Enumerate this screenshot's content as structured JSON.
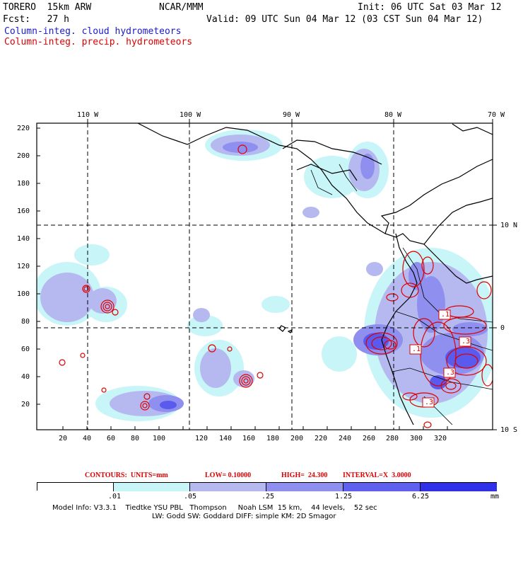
{
  "header": {
    "model": "TORERO  15km ARW",
    "center": "NCAR/MMM",
    "init": "Init: 06 UTC Sat 03 Mar 12",
    "fcst": "Fcst:   27 h",
    "valid": "Valid: 09 UTC Sun 04 Mar 12 (03 CST Sun 04 Mar 12)",
    "field_cloud": "Column-integ. cloud hydrometeors",
    "field_precip": "Column-integ. precip. hydrometeors"
  },
  "colors": {
    "cloud_label": "#1a1acc",
    "precip_label": "#dd0000",
    "shade_1": "#c8f5f8",
    "shade_2": "#b6b9f0",
    "shade_3": "#8f8ff0",
    "shade_4": "#6060ee",
    "shade_5": "#3030e8"
  },
  "map": {
    "lon_labels": [
      "110 W",
      "100 W",
      "90 W",
      "80 W",
      "70 W"
    ],
    "lat_labels": [
      "10 N",
      "0",
      "10 S"
    ],
    "x_ticks": [
      "20",
      "40",
      "60",
      "80",
      "100",
      "120",
      "140",
      "160",
      "180",
      "200",
      "220",
      "240",
      "260",
      "280",
      "300",
      "320"
    ],
    "y_ticks": [
      "220",
      "200",
      "180",
      "160",
      "140",
      "120",
      "100",
      "80",
      "60",
      "40",
      "20"
    ],
    "box_labels": [
      ".1",
      ".1",
      ".3",
      ".3",
      ".3"
    ]
  },
  "contours": {
    "units_label": "CONTOURS:  UNITS=mm",
    "low": "LOW= 0.10000",
    "high": "HIGH=  24.300",
    "interval": "INTERVAL=X  3.0000"
  },
  "legend": {
    "labels": [
      ".01",
      ".05",
      ".25",
      "1.25",
      "6.25"
    ],
    "unit": "mm"
  },
  "footer": {
    "line1": "Model Info: V3.3.1    Tiedtke YSU PBL   Thompson     Noah LSM  15 km,    44 levels,    52 sec",
    "line2": "LW: Godd SW: Goddard DIFF: simple KM: 2D Smagor"
  }
}
